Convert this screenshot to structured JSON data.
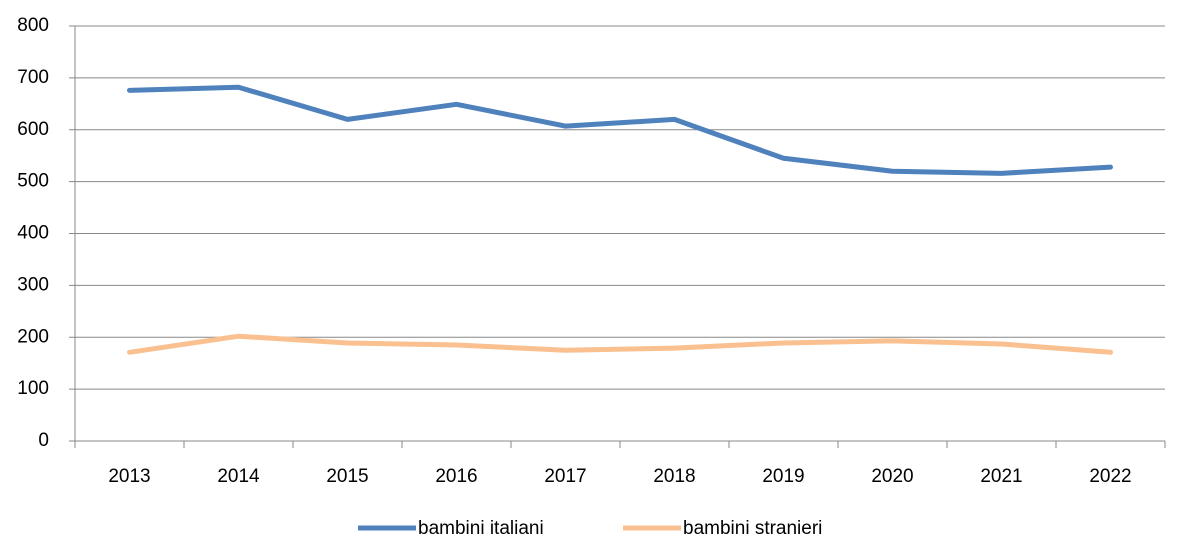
{
  "chart_data": {
    "type": "line",
    "categories": [
      "2013",
      "2014",
      "2015",
      "2016",
      "2017",
      "2018",
      "2019",
      "2020",
      "2021",
      "2022"
    ],
    "series": [
      {
        "name": "bambini italiani",
        "color": "#4f81bd",
        "values": [
          676,
          682,
          620,
          649,
          607,
          620,
          545,
          520,
          516,
          528
        ]
      },
      {
        "name": "bambini stranieri",
        "color": "#fac090",
        "values": [
          171,
          202,
          189,
          185,
          175,
          179,
          189,
          193,
          187,
          171
        ]
      }
    ],
    "ylim": [
      0,
      800
    ],
    "yticks": [
      0,
      100,
      200,
      300,
      400,
      500,
      600,
      700,
      800
    ],
    "grid": true,
    "legend": "bottom"
  }
}
